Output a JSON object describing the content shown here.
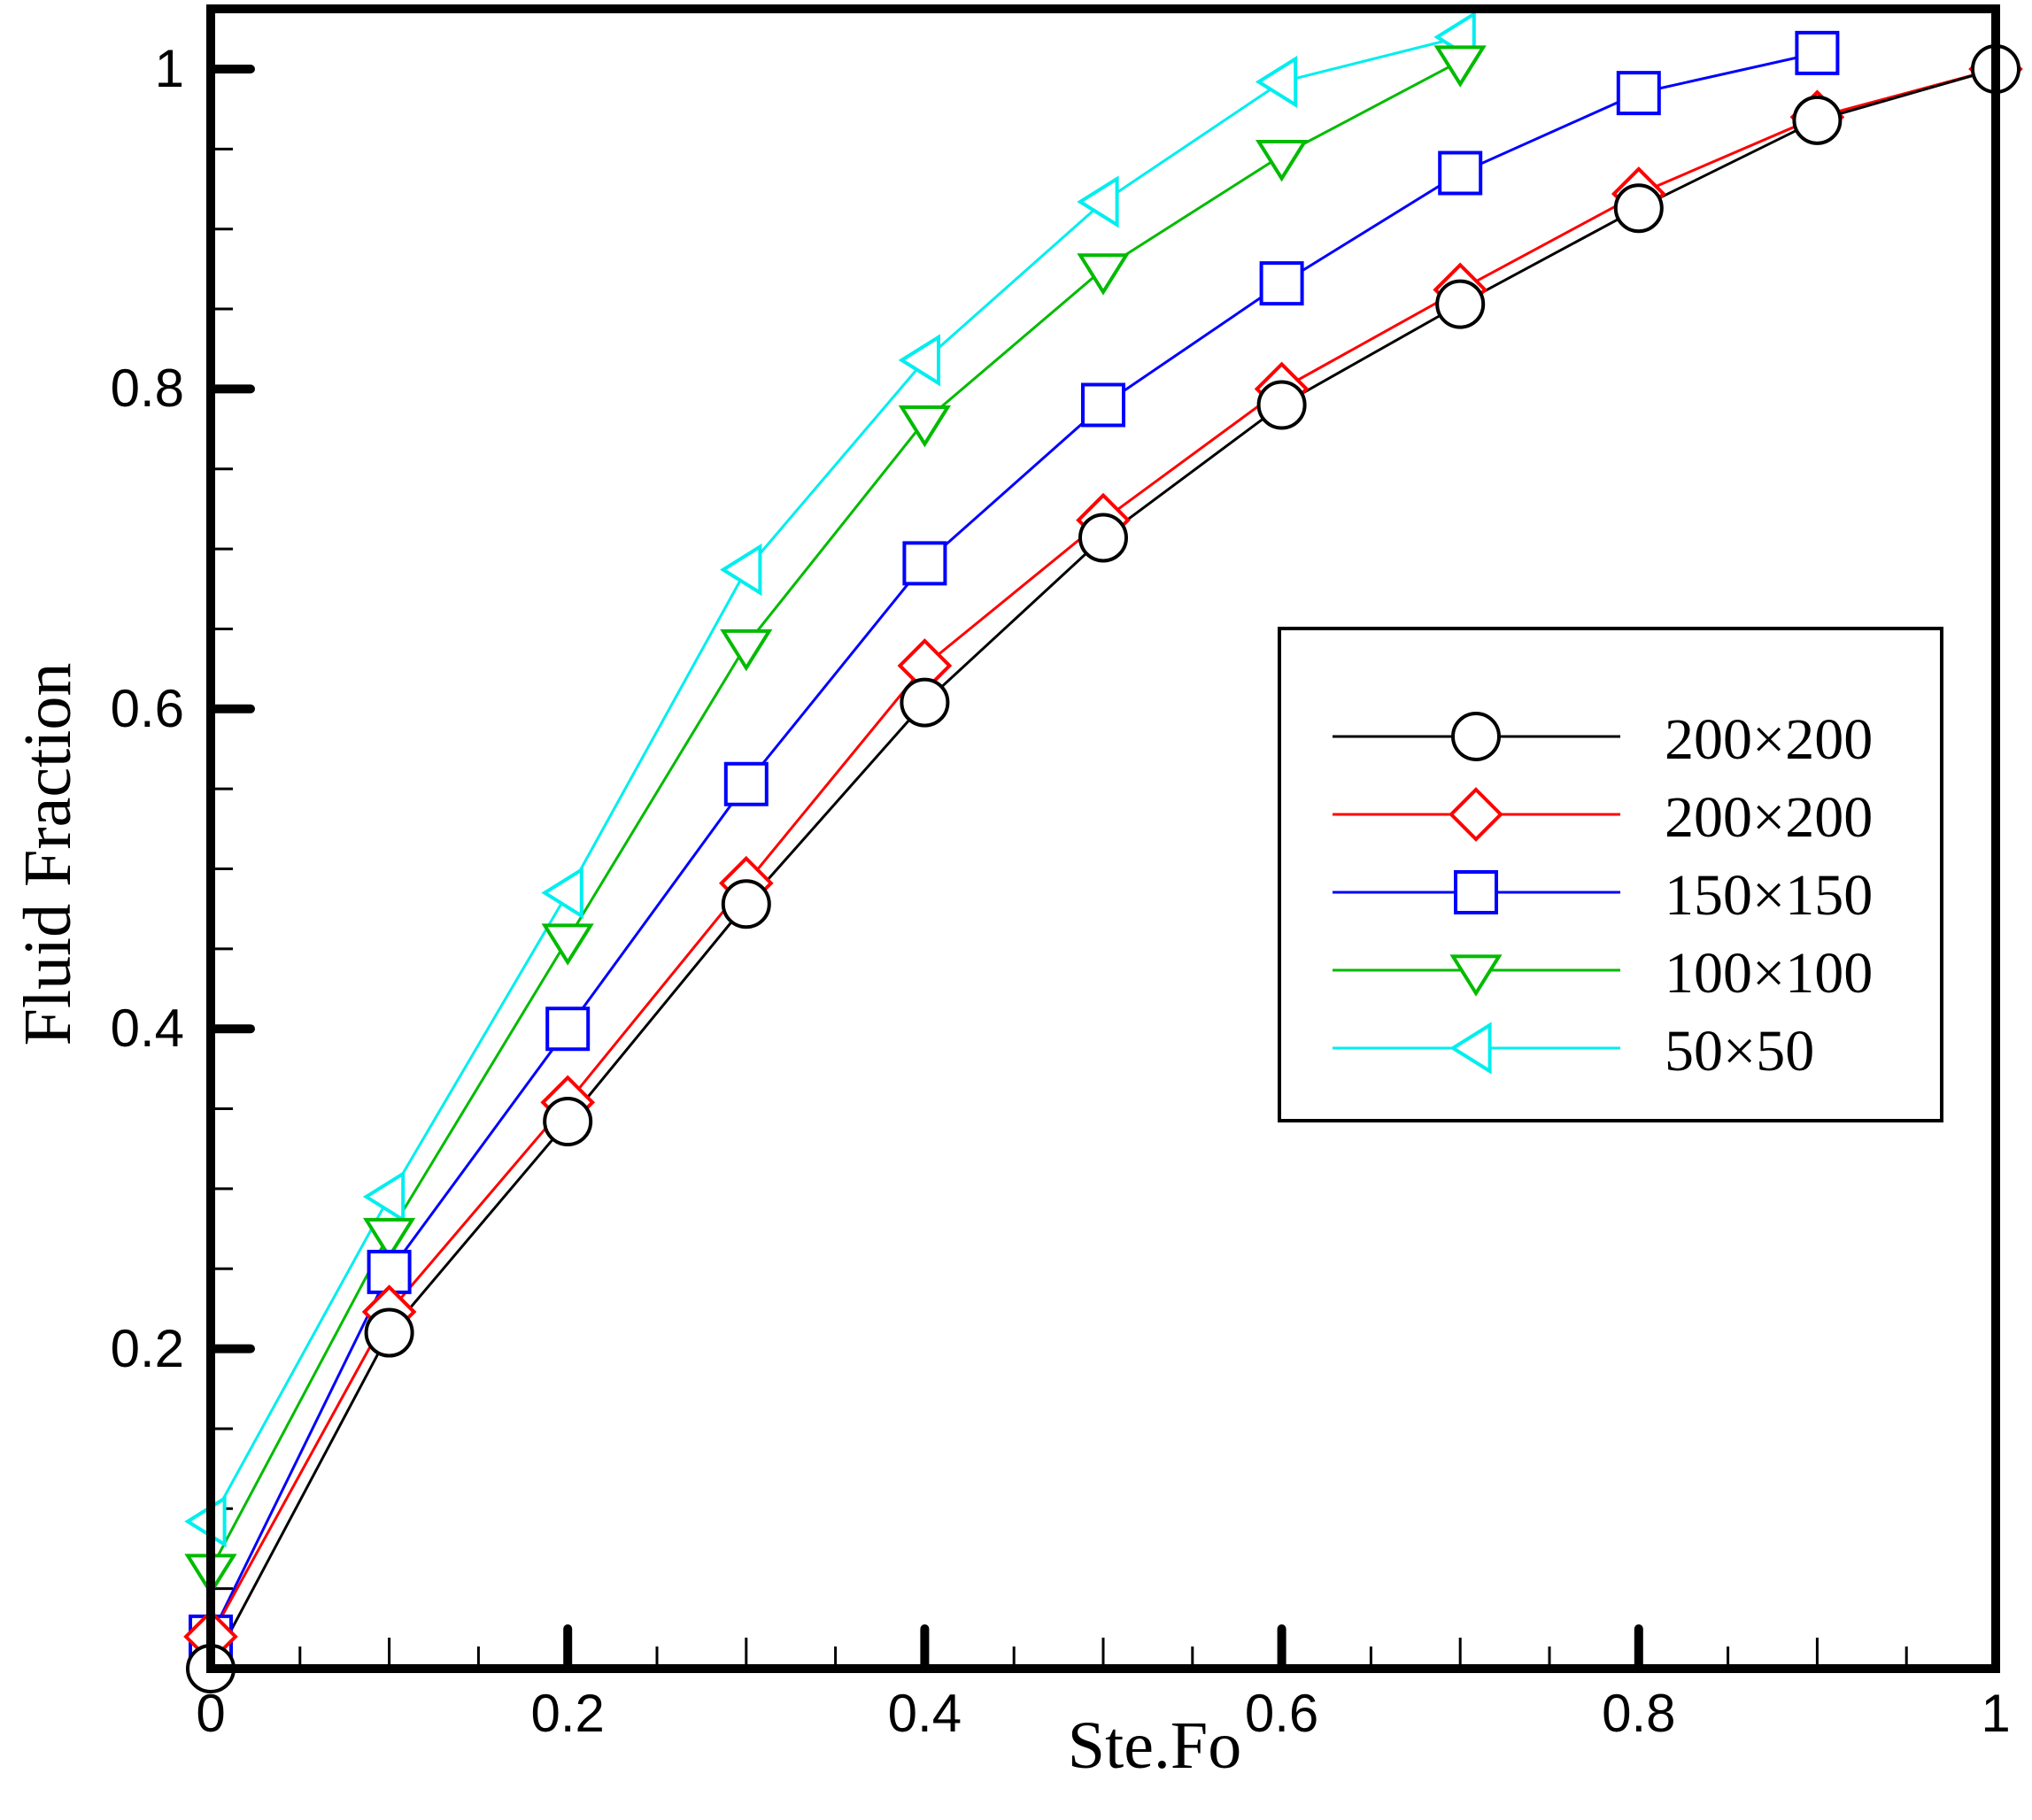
{
  "chart_data": {
    "type": "line",
    "title": "",
    "xlabel": "Ste.Fo",
    "ylabel": "Fluid Fraction",
    "xlim": [
      0,
      1
    ],
    "ylim": [
      0,
      1
    ],
    "x_ticks": [
      "0",
      "0.2",
      "0.4",
      "0.6",
      "0.8",
      "1"
    ],
    "y_ticks": [
      "0.2",
      "0.4",
      "0.6",
      "0.8",
      "1"
    ],
    "legend_position": "right",
    "series": [
      {
        "name": "200×200",
        "color": "#000000",
        "marker": "circle",
        "x": [
          0,
          0.1,
          0.2,
          0.3,
          0.4,
          0.5,
          0.6,
          0.7,
          0.8,
          0.9,
          1.0
        ],
        "y": [
          0.0,
          0.21,
          0.342,
          0.478,
          0.604,
          0.707,
          0.79,
          0.853,
          0.913,
          0.968,
          1.0
        ]
      },
      {
        "name": "200×200",
        "color": "#ff0000",
        "marker": "diamond",
        "x": [
          0,
          0.1,
          0.2,
          0.3,
          0.4,
          0.5,
          0.6,
          0.7,
          0.8,
          0.9,
          1.0
        ],
        "y": [
          0.02,
          0.223,
          0.354,
          0.491,
          0.627,
          0.718,
          0.8,
          0.862,
          0.922,
          0.97,
          1.0
        ]
      },
      {
        "name": "150×150",
        "color": "#0000ff",
        "marker": "square",
        "x": [
          0,
          0.1,
          0.2,
          0.3,
          0.4,
          0.5,
          0.6,
          0.7,
          0.8,
          0.9
        ],
        "y": [
          0.02,
          0.248,
          0.4,
          0.553,
          0.691,
          0.79,
          0.866,
          0.935,
          0.985,
          1.01
        ]
      },
      {
        "name": "100×100",
        "color": "#00bb00",
        "marker": "triangle-down",
        "x": [
          0,
          0.1,
          0.2,
          0.3,
          0.4,
          0.5,
          0.6,
          0.7
        ],
        "y": [
          0.062,
          0.272,
          0.456,
          0.64,
          0.78,
          0.875,
          0.946,
          1.005
        ]
      },
      {
        "name": "50×50",
        "color": "#00eeee",
        "marker": "triangle-left",
        "x": [
          0,
          0.1,
          0.2,
          0.3,
          0.4,
          0.5,
          0.6,
          0.7
        ],
        "y": [
          0.092,
          0.295,
          0.485,
          0.687,
          0.818,
          0.917,
          0.992,
          1.02
        ]
      }
    ]
  }
}
